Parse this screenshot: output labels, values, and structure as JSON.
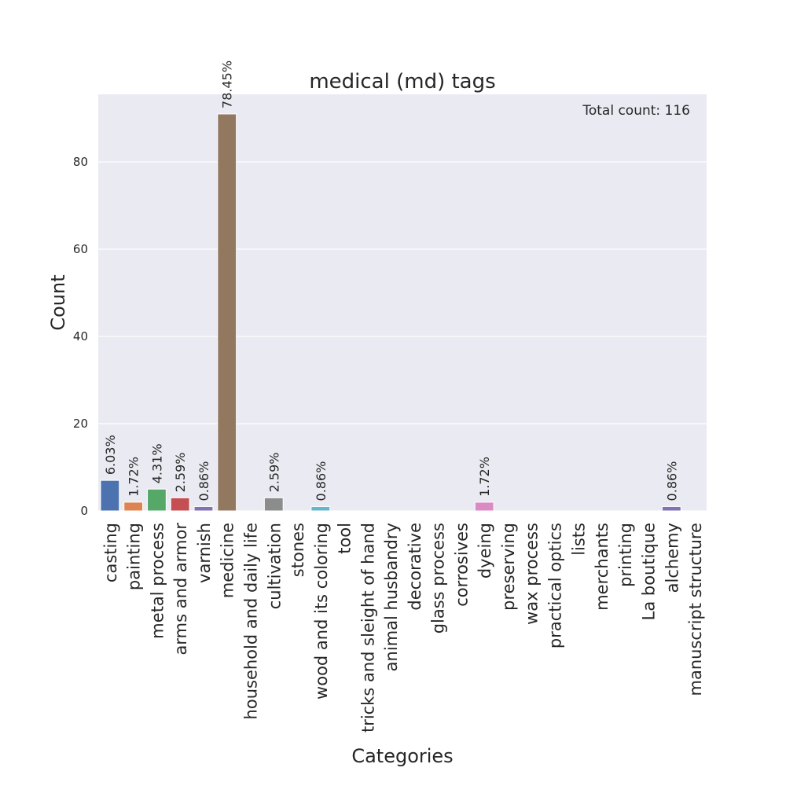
{
  "chart_data": {
    "type": "bar",
    "title": "medical (md) tags",
    "xlabel": "Categories",
    "ylabel": "Count",
    "annotation": "Total count: 116",
    "ylim": [
      0,
      95.5
    ],
    "yticks": [
      0,
      20,
      40,
      60,
      80
    ],
    "grid": true,
    "categories": [
      "casting",
      "painting",
      "metal process",
      "arms and armor",
      "varnish",
      "medicine",
      "household and daily life",
      "cultivation",
      "stones",
      "wood and its coloring",
      "tool",
      "tricks and sleight of hand",
      "animal husbandry",
      "decorative",
      "glass process",
      "corrosives",
      "dyeing",
      "preserving",
      "wax process",
      "practical optics",
      "lists",
      "merchants",
      "printing",
      "La boutique",
      "alchemy",
      "manuscript structure"
    ],
    "values": [
      7,
      2,
      5,
      3,
      1,
      91,
      0,
      3,
      0,
      1,
      0,
      0,
      0,
      0,
      0,
      0,
      2,
      0,
      0,
      0,
      0,
      0,
      0,
      0,
      1,
      0
    ],
    "labels": [
      "6.03%",
      "1.72%",
      "4.31%",
      "2.59%",
      "0.86%",
      "78.45%",
      "",
      "2.59%",
      "",
      "0.86%",
      "",
      "",
      "",
      "",
      "",
      "",
      "1.72%",
      "",
      "",
      "",
      "",
      "",
      "",
      "",
      "0.86%",
      ""
    ],
    "colors": [
      "#4c72b0",
      "#dd8452",
      "#55a868",
      "#c44e52",
      "#8172b3",
      "#937860",
      "#da8bc3",
      "#8c8c8c",
      "#ccb974",
      "#64b5cd",
      "#4c72b0",
      "#dd8452",
      "#55a868",
      "#c44e52",
      "#8172b3",
      "#937860",
      "#da8bc3",
      "#8c8c8c",
      "#ccb974",
      "#64b5cd",
      "#4c72b0",
      "#dd8452",
      "#55a868",
      "#c44e52",
      "#8172b3",
      "#937860"
    ],
    "background": "#eaeaf2",
    "gridColor": "#ffffff"
  }
}
